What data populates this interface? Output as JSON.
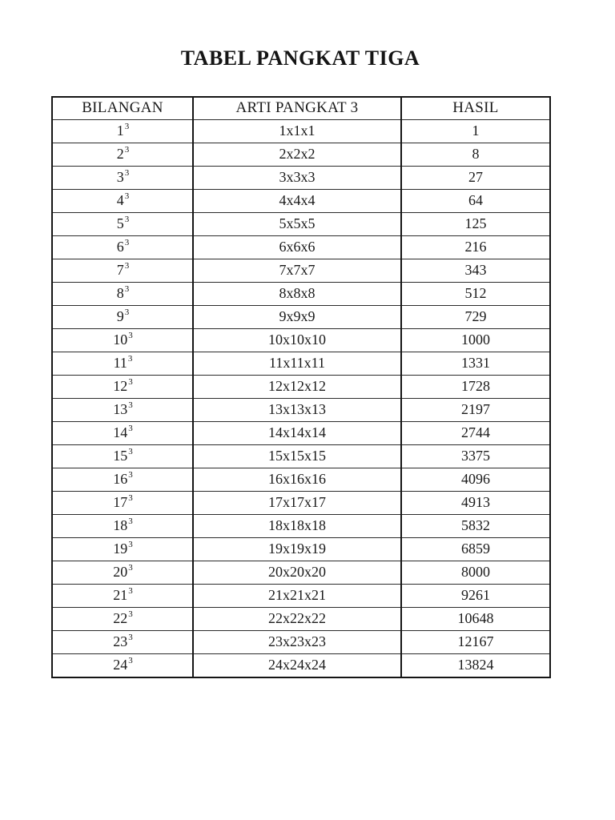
{
  "page": {
    "background_color": "#ffffff",
    "text_color": "#1a1a1a",
    "border_color": "#151515"
  },
  "document": {
    "title": "TABEL PANGKAT TIGA"
  },
  "table": {
    "headers": [
      "BILANGAN",
      "ARTI PANGKAT 3",
      "HASIL"
    ],
    "rows": [
      {
        "base": "1",
        "exponent": "3",
        "expansion": "1x1x1",
        "result": "1"
      },
      {
        "base": "2",
        "exponent": "3",
        "expansion": "2x2x2",
        "result": "8"
      },
      {
        "base": "3",
        "exponent": "3",
        "expansion": "3x3x3",
        "result": "27"
      },
      {
        "base": "4",
        "exponent": "3",
        "expansion": "4x4x4",
        "result": "64"
      },
      {
        "base": "5",
        "exponent": "3",
        "expansion": "5x5x5",
        "result": "125"
      },
      {
        "base": "6",
        "exponent": "3",
        "expansion": "6x6x6",
        "result": "216"
      },
      {
        "base": "7",
        "exponent": "3",
        "expansion": "7x7x7",
        "result": "343"
      },
      {
        "base": "8",
        "exponent": "3",
        "expansion": "8x8x8",
        "result": "512"
      },
      {
        "base": "9",
        "exponent": "3",
        "expansion": "9x9x9",
        "result": "729"
      },
      {
        "base": "10",
        "exponent": "3",
        "expansion": "10x10x10",
        "result": "1000"
      },
      {
        "base": "11",
        "exponent": "3",
        "expansion": "11x11x11",
        "result": "1331"
      },
      {
        "base": "12",
        "exponent": "3",
        "expansion": "12x12x12",
        "result": "1728"
      },
      {
        "base": "13",
        "exponent": "3",
        "expansion": "13x13x13",
        "result": "2197"
      },
      {
        "base": "14",
        "exponent": "3",
        "expansion": "14x14x14",
        "result": "2744"
      },
      {
        "base": "15",
        "exponent": "3",
        "expansion": "15x15x15",
        "result": "3375"
      },
      {
        "base": "16",
        "exponent": "3",
        "expansion": "16x16x16",
        "result": "4096"
      },
      {
        "base": "17",
        "exponent": "3",
        "expansion": "17x17x17",
        "result": "4913"
      },
      {
        "base": "18",
        "exponent": "3",
        "expansion": "18x18x18",
        "result": "5832"
      },
      {
        "base": "19",
        "exponent": "3",
        "expansion": "19x19x19",
        "result": "6859"
      },
      {
        "base": "20",
        "exponent": "3",
        "expansion": "20x20x20",
        "result": "8000"
      },
      {
        "base": "21",
        "exponent": "3",
        "expansion": "21x21x21",
        "result": "9261"
      },
      {
        "base": "22",
        "exponent": "3",
        "expansion": "22x22x22",
        "result": "10648"
      },
      {
        "base": "23",
        "exponent": "3",
        "expansion": "23x23x23",
        "result": "12167"
      },
      {
        "base": "24",
        "exponent": "3",
        "expansion": "24x24x24",
        "result": "13824"
      }
    ]
  }
}
